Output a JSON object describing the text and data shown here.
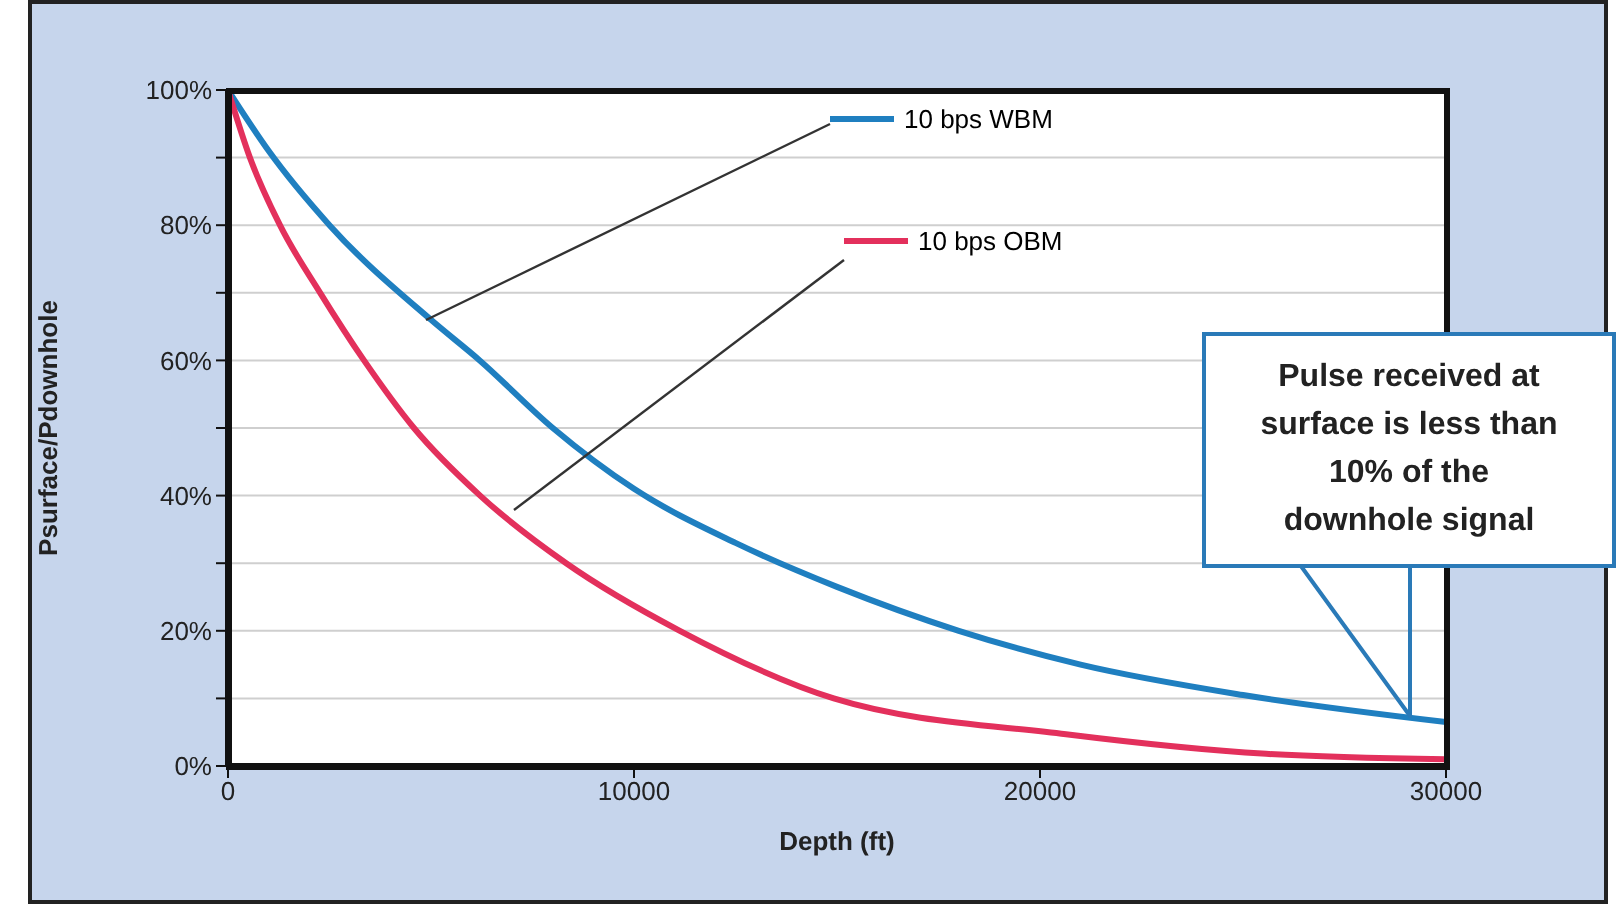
{
  "chart_data": {
    "type": "line",
    "xlabel": "Depth (ft)",
    "ylabel": "Psurface/Pdownhole",
    "xlim": [
      0,
      30000
    ],
    "xticks": [
      0,
      10000,
      20000,
      30000
    ],
    "ylim": [
      0,
      100
    ],
    "yticks": [
      {
        "value": 0,
        "label": "0%"
      },
      {
        "value": 10,
        "label": null
      },
      {
        "value": 20,
        "label": "20%"
      },
      {
        "value": 30,
        "label": null
      },
      {
        "value": 40,
        "label": "40%"
      },
      {
        "value": 50,
        "label": null
      },
      {
        "value": 60,
        "label": "60%"
      },
      {
        "value": 70,
        "label": null
      },
      {
        "value": 80,
        "label": "80%"
      },
      {
        "value": 90,
        "label": null
      },
      {
        "value": 100,
        "label": "100%"
      }
    ],
    "grid": "y",
    "legend": "top",
    "marker": "none",
    "line_style": "solid",
    "series": [
      {
        "name": "10 bps WBM",
        "color": "#1f7fc0",
        "x": [
          0,
          1000,
          2500,
          5000,
          6200,
          8000,
          10000,
          12500,
          15000,
          18000,
          21000,
          25000,
          30000
        ],
        "values": [
          100,
          91,
          80,
          66,
          60,
          50,
          41,
          33,
          26.5,
          20,
          15,
          10.5,
          6.5
        ]
      },
      {
        "name": "10 bps OBM",
        "color": "#e3305c",
        "x": [
          0,
          540,
          1280,
          2270,
          3350,
          4580,
          6210,
          8330,
          11130,
          14920,
          20640,
          25570,
          30000
        ],
        "values": [
          100,
          90,
          80,
          70,
          60,
          50,
          40,
          30,
          20,
          10,
          4.7,
          1.8,
          1
        ]
      }
    ],
    "annotations": [
      "Pulse received at surface is less than 10% of the downhole signal"
    ]
  }
}
